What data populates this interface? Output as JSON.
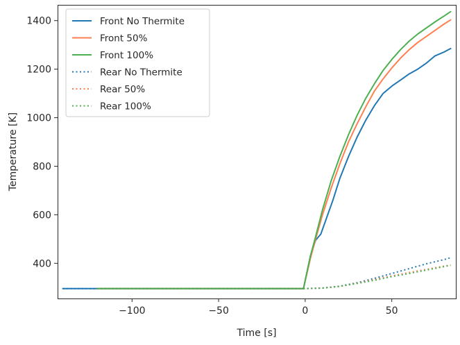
{
  "chart_data": {
    "type": "line",
    "xlabel": "Time [s]",
    "ylabel": "Temperature [K]",
    "xlim": [
      -143,
      87
    ],
    "ylim": [
      255,
      1465
    ],
    "xticks": [
      -100,
      -50,
      0,
      50
    ],
    "xtick_labels": [
      "−100",
      "−50",
      "0",
      "50"
    ],
    "yticks": [
      400,
      600,
      800,
      1000,
      1200,
      1400
    ],
    "ytick_labels": [
      "400",
      "600",
      "800",
      "1000",
      "1200",
      "1400"
    ],
    "grid": false,
    "legend_position": "top-left",
    "series": [
      {
        "name": "Front No Thermite",
        "color": "#1f77b4",
        "style": "solid",
        "points": [
          [
            -140,
            296
          ],
          [
            -120,
            296
          ],
          [
            -60,
            296
          ],
          [
            -1,
            296
          ],
          [
            3,
            430
          ],
          [
            6,
            495
          ],
          [
            9,
            520
          ],
          [
            12,
            580
          ],
          [
            16,
            660
          ],
          [
            20,
            750
          ],
          [
            25,
            840
          ],
          [
            30,
            920
          ],
          [
            35,
            990
          ],
          [
            40,
            1050
          ],
          [
            45,
            1100
          ],
          [
            50,
            1130
          ],
          [
            55,
            1155
          ],
          [
            60,
            1180
          ],
          [
            65,
            1200
          ],
          [
            70,
            1225
          ],
          [
            75,
            1255
          ],
          [
            80,
            1270
          ],
          [
            84,
            1285
          ]
        ]
      },
      {
        "name": "Front 50%",
        "color": "#ff7f50",
        "style": "solid",
        "points": [
          [
            -120,
            296
          ],
          [
            -60,
            296
          ],
          [
            -1,
            296
          ],
          [
            3,
            420
          ],
          [
            6,
            500
          ],
          [
            10,
            600
          ],
          [
            15,
            710
          ],
          [
            20,
            810
          ],
          [
            25,
            900
          ],
          [
            30,
            975
          ],
          [
            35,
            1045
          ],
          [
            40,
            1110
          ],
          [
            45,
            1160
          ],
          [
            50,
            1205
          ],
          [
            55,
            1245
          ],
          [
            60,
            1280
          ],
          [
            65,
            1310
          ],
          [
            70,
            1335
          ],
          [
            75,
            1360
          ],
          [
            80,
            1385
          ],
          [
            84,
            1403
          ]
        ]
      },
      {
        "name": "Front 100%",
        "color": "#4caf50",
        "style": "solid",
        "points": [
          [
            -120,
            296
          ],
          [
            -60,
            296
          ],
          [
            -1,
            296
          ],
          [
            3,
            430
          ],
          [
            6,
            510
          ],
          [
            10,
            620
          ],
          [
            15,
            740
          ],
          [
            20,
            840
          ],
          [
            25,
            930
          ],
          [
            30,
            1010
          ],
          [
            35,
            1080
          ],
          [
            40,
            1140
          ],
          [
            45,
            1195
          ],
          [
            50,
            1240
          ],
          [
            55,
            1280
          ],
          [
            60,
            1315
          ],
          [
            65,
            1345
          ],
          [
            70,
            1370
          ],
          [
            75,
            1395
          ],
          [
            80,
            1418
          ],
          [
            84,
            1437
          ]
        ]
      },
      {
        "name": "Rear No Thermite",
        "color": "#1f77b4",
        "style": "dotted",
        "points": [
          [
            -140,
            296
          ],
          [
            -60,
            296
          ],
          [
            0,
            296
          ],
          [
            10,
            298
          ],
          [
            20,
            306
          ],
          [
            30,
            320
          ],
          [
            40,
            338
          ],
          [
            50,
            358
          ],
          [
            60,
            378
          ],
          [
            70,
            398
          ],
          [
            80,
            415
          ],
          [
            84,
            423
          ]
        ]
      },
      {
        "name": "Rear 50%",
        "color": "#ff7f50",
        "style": "dotted",
        "points": [
          [
            -120,
            296
          ],
          [
            -60,
            296
          ],
          [
            0,
            296
          ],
          [
            10,
            298
          ],
          [
            20,
            305
          ],
          [
            30,
            318
          ],
          [
            40,
            333
          ],
          [
            50,
            348
          ],
          [
            60,
            362
          ],
          [
            70,
            375
          ],
          [
            80,
            388
          ],
          [
            84,
            393
          ]
        ]
      },
      {
        "name": "Rear 100%",
        "color": "#4caf50",
        "style": "dotted",
        "points": [
          [
            -120,
            296
          ],
          [
            -60,
            296
          ],
          [
            0,
            296
          ],
          [
            10,
            298
          ],
          [
            20,
            305
          ],
          [
            30,
            317
          ],
          [
            40,
            330
          ],
          [
            50,
            345
          ],
          [
            60,
            358
          ],
          [
            70,
            372
          ],
          [
            80,
            386
          ],
          [
            84,
            392
          ]
        ]
      }
    ]
  }
}
